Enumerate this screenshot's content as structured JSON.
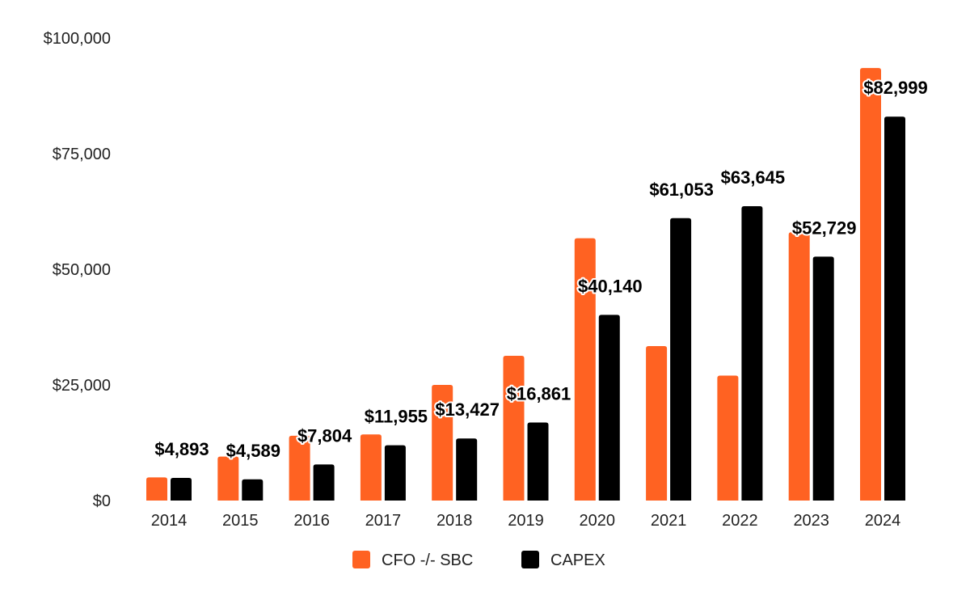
{
  "chart_data": {
    "type": "bar",
    "title": "",
    "xlabel": "",
    "ylabel": "",
    "ylim": [
      0,
      100000
    ],
    "y_ticks": [
      0,
      25000,
      50000,
      75000,
      100000
    ],
    "y_tick_labels": [
      "$0",
      "$25,000",
      "$50,000",
      "$75,000",
      "$100,000"
    ],
    "categories": [
      "2014",
      "2015",
      "2016",
      "2017",
      "2018",
      "2019",
      "2020",
      "2021",
      "2022",
      "2023",
      "2024"
    ],
    "series": [
      {
        "name": "CFO -/- SBC",
        "color": "#ff6222",
        "values": [
          5000,
          9500,
          14000,
          14300,
          25000,
          31300,
          56700,
          33400,
          27000,
          58000,
          93500
        ]
      },
      {
        "name": "CAPEX",
        "color": "#000000",
        "values": [
          4893,
          4589,
          7804,
          11955,
          13427,
          16861,
          40140,
          61053,
          63645,
          52729,
          82999
        ]
      }
    ],
    "data_labels": [
      "$4,893",
      "$4,589",
      "$7,804",
      "$11,955",
      "$13,427",
      "$16,861",
      "$40,140",
      "$61,053",
      "$63,645",
      "$52,729",
      "$82,999"
    ],
    "legend": {
      "position": "bottom"
    },
    "grid": false
  }
}
